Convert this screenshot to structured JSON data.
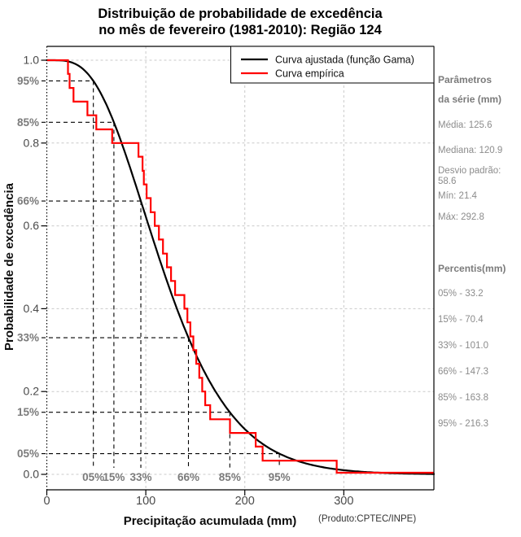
{
  "title": {
    "line1": "Distribuição de probabilidade de excedência",
    "line2": "no mês de fevereiro (1981-2010): Região 124"
  },
  "product_label": "(Produto:CPTEC/INPE)",
  "legend": {
    "items": [
      {
        "label": "Curva ajustada (função Gama)",
        "color": "#000000"
      },
      {
        "label": "Curva empírica",
        "color": "#ff0000"
      }
    ]
  },
  "side_panel": {
    "params_title_line1": "Parâmetros",
    "params_title_line2": "da série (mm)",
    "stats": [
      "Média: 125.6",
      "Mediana: 120.9",
      "Desvio padrão: 58.6",
      "Mín: 21.4",
      "Máx: 292.8"
    ],
    "percentis_title": "Percentis(mm)",
    "percentis": [
      "05% - 33.2",
      "15% - 70.4",
      "33% - 101.0",
      "66% - 147.3",
      "85% - 163.8",
      "95% - 216.3"
    ]
  },
  "colors": {
    "fitted": "#000000",
    "empirical": "#ff0000",
    "grid": "#c9c9c9",
    "guide": "#000000",
    "axis_text": "#4a4a4a",
    "muted_text": "#7b7b7b",
    "panel_text": "#8c8c8c"
  },
  "chart_data": {
    "type": "line",
    "title": "Distribuição de probabilidade de excedência no mês de fevereiro (1981-2010): Região 124",
    "xlabel": "Precipitação acumulada (mm)",
    "ylabel": "Probabilidade de excedência",
    "xlim": [
      0,
      391
    ],
    "ylim": [
      0,
      1
    ],
    "x_ticks": [
      0,
      100,
      200,
      300
    ],
    "y_ticks": [
      "0.0",
      "0.2",
      "0.4",
      "0.6",
      "0.8",
      "1.0"
    ],
    "grid": true,
    "legend_position": "top-right",
    "series": [
      {
        "name": "Curva ajustada (função Gama)",
        "type": "gamma_survival_fit",
        "color": "#000000",
        "mean": 125.6,
        "sd": 58.6
      },
      {
        "name": "Curva empírica",
        "type": "step_survival",
        "color": "#ff0000",
        "start": [
          0,
          1.0
        ],
        "drops": [
          [
            21.4,
            0.967
          ],
          [
            23,
            0.933
          ],
          [
            27,
            0.9
          ],
          [
            41,
            0.867
          ],
          [
            50,
            0.833
          ],
          [
            66,
            0.8
          ],
          [
            92.6,
            0.767
          ],
          [
            96.7,
            0.733
          ],
          [
            98,
            0.7
          ],
          [
            100.8,
            0.667
          ],
          [
            104.9,
            0.633
          ],
          [
            109,
            0.6
          ],
          [
            113.2,
            0.567
          ],
          [
            117.3,
            0.533
          ],
          [
            121.4,
            0.5
          ],
          [
            125.5,
            0.467
          ],
          [
            129.6,
            0.433
          ],
          [
            139,
            0.4
          ],
          [
            142,
            0.367
          ],
          [
            145,
            0.333
          ],
          [
            148,
            0.3
          ],
          [
            151,
            0.267
          ],
          [
            154,
            0.233
          ],
          [
            157,
            0.2
          ],
          [
            160,
            0.167
          ],
          [
            165,
            0.133
          ],
          [
            185,
            0.1
          ],
          [
            211,
            0.067
          ],
          [
            218,
            0.033
          ],
          [
            292.8,
            0.004
          ]
        ]
      }
    ],
    "guides": [
      {
        "level": 0.95,
        "axis_label": "95%",
        "bottom_label": "05%"
      },
      {
        "level": 0.85,
        "axis_label": "85%",
        "bottom_label": "15%"
      },
      {
        "level": 0.66,
        "axis_label": "66%",
        "bottom_label": "33%"
      },
      {
        "level": 0.33,
        "axis_label": "33%",
        "bottom_label": "66%"
      },
      {
        "level": 0.15,
        "axis_label": "15%",
        "bottom_label": "85%"
      },
      {
        "level": 0.05,
        "axis_label": "05%",
        "bottom_label": "95%"
      }
    ]
  }
}
